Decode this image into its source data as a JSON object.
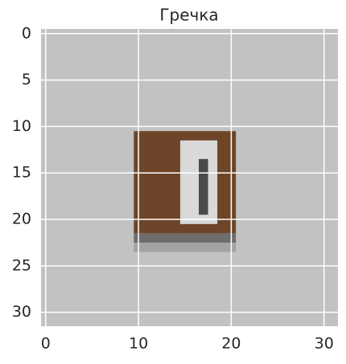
{
  "chart_data": {
    "type": "image",
    "title": "Гречка",
    "background": "#c2c2c2",
    "regions": [
      {
        "x": [
          9.5,
          20.5
        ],
        "y": [
          10.5,
          21.5
        ],
        "color": "#6e4528"
      },
      {
        "x": [
          9.5,
          20.5
        ],
        "y": [
          21.5,
          22.5
        ],
        "color": "#6d6d6d"
      },
      {
        "x": [
          9.5,
          20.5
        ],
        "y": [
          22.5,
          23.5
        ],
        "color": "#a3a3a3"
      },
      {
        "x": [
          14.5,
          18.5
        ],
        "y": [
          11.5,
          20.5
        ],
        "color": "#d9d9d9"
      },
      {
        "x": [
          16.5,
          17.5
        ],
        "y": [
          13.5,
          19.5
        ],
        "color": "#4a4a4a"
      }
    ],
    "xlim": [
      -0.5,
      31.5
    ],
    "ylim": [
      31.5,
      -0.5
    ],
    "xticks": [
      0,
      10,
      20,
      30
    ],
    "yticks": [
      0,
      5,
      10,
      15,
      20,
      25,
      30
    ],
    "grid": true
  }
}
